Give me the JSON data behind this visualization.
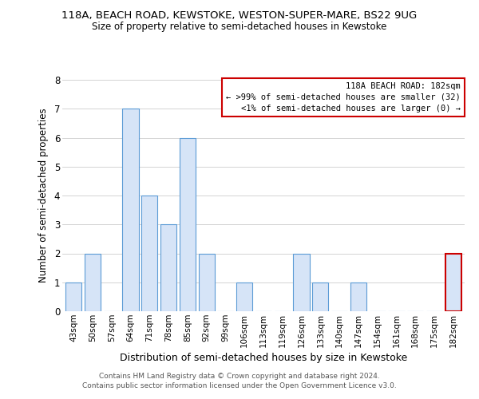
{
  "title_line1": "118A, BEACH ROAD, KEWSTOKE, WESTON-SUPER-MARE, BS22 9UG",
  "title_line2": "Size of property relative to semi-detached houses in Kewstoke",
  "xlabel": "Distribution of semi-detached houses by size in Kewstoke",
  "ylabel": "Number of semi-detached properties",
  "categories": [
    "43sqm",
    "50sqm",
    "57sqm",
    "64sqm",
    "71sqm",
    "78sqm",
    "85sqm",
    "92sqm",
    "99sqm",
    "106sqm",
    "113sqm",
    "119sqm",
    "126sqm",
    "133sqm",
    "140sqm",
    "147sqm",
    "154sqm",
    "161sqm",
    "168sqm",
    "175sqm",
    "182sqm"
  ],
  "values": [
    1,
    2,
    0,
    7,
    4,
    3,
    6,
    2,
    0,
    1,
    0,
    0,
    2,
    1,
    0,
    1,
    0,
    0,
    0,
    0,
    2
  ],
  "bar_color": "#d6e4f7",
  "bar_edge_color": "#5b9bd5",
  "highlight_index": 20,
  "highlight_bar_edge_color": "#cc0000",
  "ylim": [
    0,
    8
  ],
  "yticks": [
    0,
    1,
    2,
    3,
    4,
    5,
    6,
    7,
    8
  ],
  "legend_title": "118A BEACH ROAD: 182sqm",
  "legend_line1": "← >99% of semi-detached houses are smaller (32)",
  "legend_line2": "<1% of semi-detached houses are larger (0) →",
  "legend_box_edge_color": "#cc0000",
  "footer_line1": "Contains HM Land Registry data © Crown copyright and database right 2024.",
  "footer_line2": "Contains public sector information licensed under the Open Government Licence v3.0.",
  "background_color": "#ffffff",
  "grid_color": "#cccccc"
}
